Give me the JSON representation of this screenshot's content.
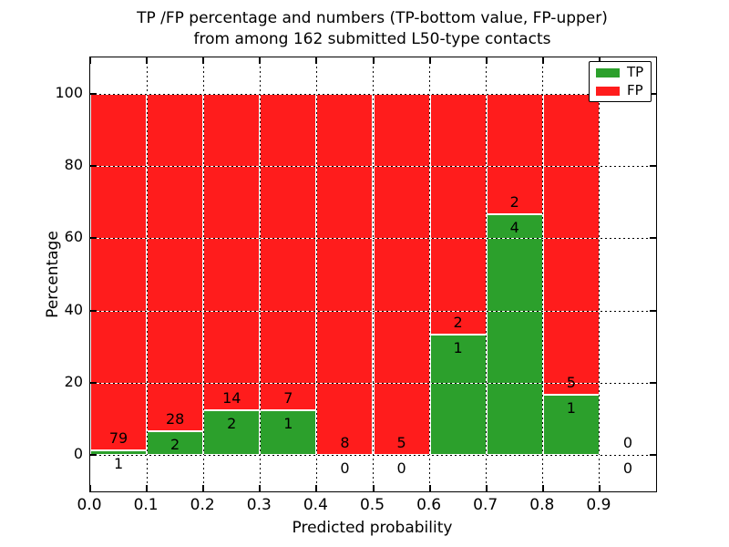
{
  "chart_data": {
    "type": "bar",
    "stacked": true,
    "title_lines": [
      "TP /FP percentage and numbers (TP-bottom value, FP-upper)",
      "from among 162 submitted L50-type contacts"
    ],
    "total_contacts": 162,
    "xlabel": "Predicted probability",
    "ylabel": "Percentage",
    "xlim": [
      0.0,
      1.0
    ],
    "ylim": [
      -10,
      110
    ],
    "x_tick_values": [
      0.0,
      0.1,
      0.2,
      0.3,
      0.4,
      0.5,
      0.6,
      0.7,
      0.8,
      0.9
    ],
    "x_tick_labels": [
      "0.0",
      "0.1",
      "0.2",
      "0.3",
      "0.4",
      "0.5",
      "0.6",
      "0.7",
      "0.8",
      "0.9"
    ],
    "y_tick_values": [
      0,
      20,
      40,
      60,
      80,
      100
    ],
    "y_tick_labels": [
      "0",
      "20",
      "40",
      "60",
      "80",
      "100"
    ],
    "grid": {
      "show": true,
      "style": "dotted"
    },
    "colors": {
      "tp": "#2ca02c",
      "fp": "#ff1c1c",
      "bar_edge": "#ffffff",
      "spine": "#000000"
    },
    "legend": {
      "position": "upper right",
      "entries": [
        {
          "label": "TP",
          "color": "#2ca02c"
        },
        {
          "label": "FP",
          "color": "#ff1c1c"
        }
      ]
    },
    "bins": [
      {
        "x_range": [
          0.0,
          0.1
        ],
        "tp": 1,
        "fp": 79,
        "tp_pct": 1.25,
        "fp_pct": 98.75
      },
      {
        "x_range": [
          0.1,
          0.2
        ],
        "tp": 2,
        "fp": 28,
        "tp_pct": 6.67,
        "fp_pct": 93.33
      },
      {
        "x_range": [
          0.2,
          0.3
        ],
        "tp": 2,
        "fp": 14,
        "tp_pct": 12.5,
        "fp_pct": 87.5
      },
      {
        "x_range": [
          0.3,
          0.4
        ],
        "tp": 1,
        "fp": 7,
        "tp_pct": 12.5,
        "fp_pct": 87.5
      },
      {
        "x_range": [
          0.4,
          0.5
        ],
        "tp": 0,
        "fp": 8,
        "tp_pct": 0,
        "fp_pct": 100
      },
      {
        "x_range": [
          0.5,
          0.6
        ],
        "tp": 0,
        "fp": 5,
        "tp_pct": 0,
        "fp_pct": 100
      },
      {
        "x_range": [
          0.6,
          0.7
        ],
        "tp": 1,
        "fp": 2,
        "tp_pct": 33.33,
        "fp_pct": 66.67
      },
      {
        "x_range": [
          0.7,
          0.8
        ],
        "tp": 4,
        "fp": 2,
        "tp_pct": 66.67,
        "fp_pct": 33.33
      },
      {
        "x_range": [
          0.8,
          0.9
        ],
        "tp": 1,
        "fp": 5,
        "tp_pct": 16.67,
        "fp_pct": 83.33
      },
      {
        "x_range": [
          0.9,
          1.0
        ],
        "tp": 0,
        "fp": 0,
        "tp_pct": 0,
        "fp_pct": 0
      }
    ]
  }
}
